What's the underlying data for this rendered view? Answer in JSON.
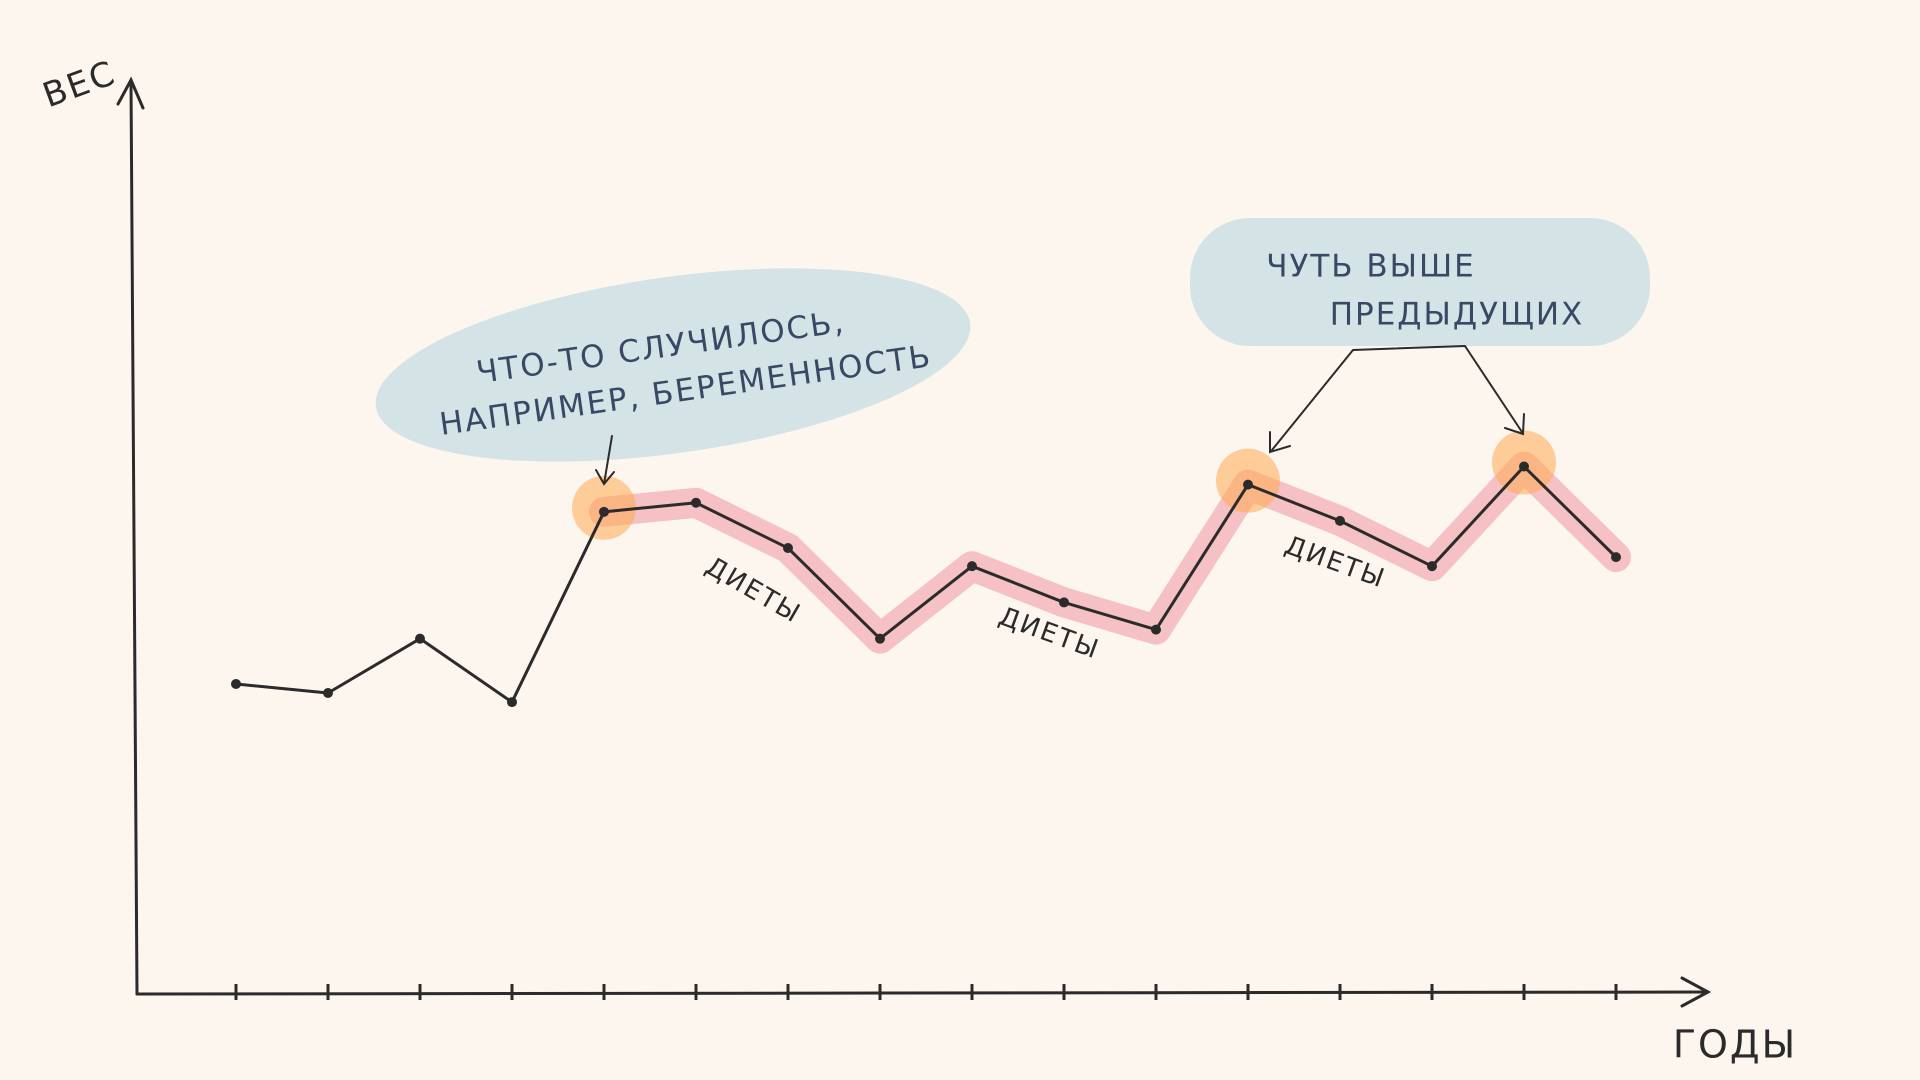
{
  "chart_data": {
    "type": "line",
    "x_label": "ГОДЫ",
    "y_label": "ВЕС",
    "categories": [
      null,
      null,
      null,
      null,
      null,
      null,
      null,
      null,
      null,
      null,
      null,
      null,
      null,
      null,
      null,
      null
    ],
    "series": [
      {
        "color": "#2b2b2b",
        "values": [
          34,
          33,
          39,
          32,
          53,
          54,
          49,
          39,
          47,
          43,
          40,
          56,
          52,
          47,
          58,
          48
        ]
      }
    ],
    "ylim": [
      0,
      100
    ],
    "annotations": [
      {
        "lines": [
          "ЧТО-ТО СЛУЧИЛОСЬ,",
          "НАПРИМЕР, БЕРЕМЕННОСТЬ"
        ]
      },
      {
        "lines": [
          "ЧУТЬ ВЫШЕ",
          "ПРЕДЫДУЩИХ"
        ]
      }
    ],
    "labels": [
      "ДИЕТЫ",
      "ДИЕТЫ",
      "ДИЕТЫ"
    ]
  }
}
